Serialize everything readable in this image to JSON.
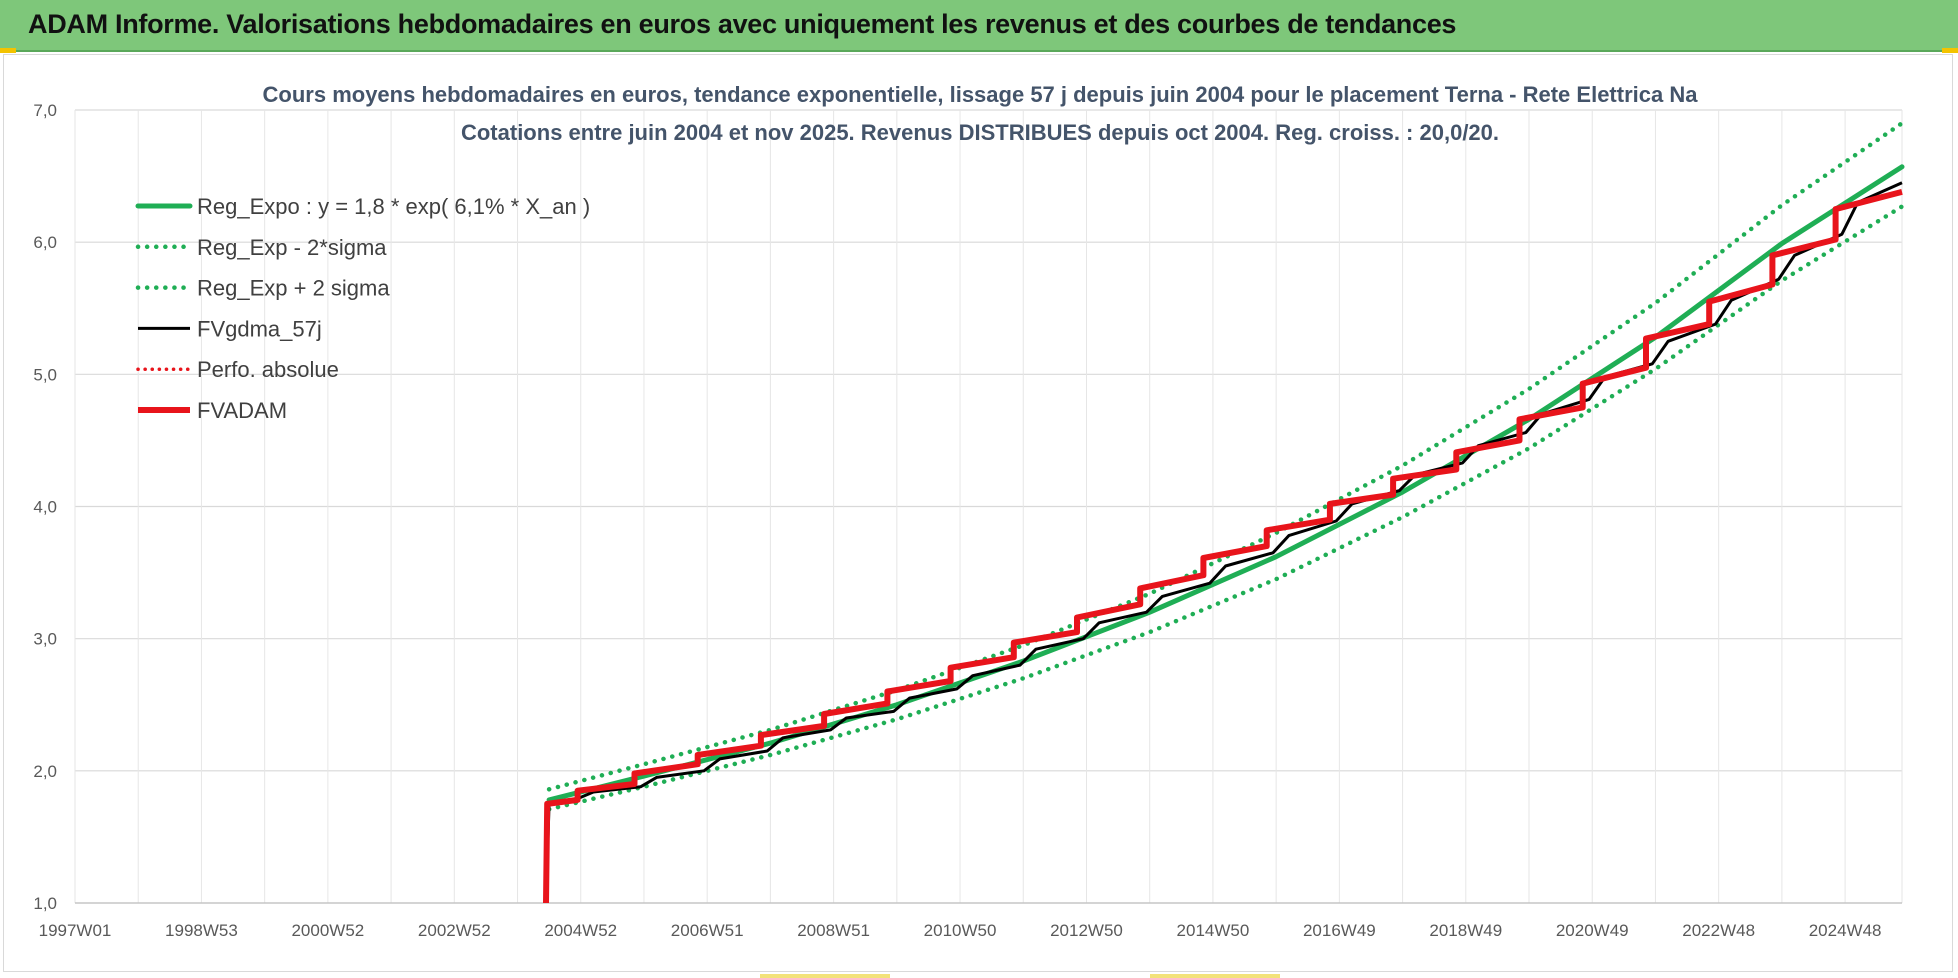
{
  "header": {
    "title": "ADAM Informe. Valorisations hebdomadaires en euros avec uniquement les revenus et des courbes de tendances"
  },
  "colors": {
    "banner": "#7ec77a",
    "regression": "#1fae55",
    "fvgdma": "#000000",
    "fvadam": "#e8141b",
    "perfo": "#e8141b",
    "grid": "#d9d9d9"
  },
  "chart_data": {
    "type": "line",
    "title": "Cours moyens hebdomadaires en euros, tendance exponentielle, lissage 57 j depuis juin 2004 pour le placement Terna - Rete Elettrica Na",
    "subtitle": "Cotations entre juin 2004 et nov 2025. Revenus DISTRIBUES depuis oct 2004. Reg. croiss. : 20,0/20.",
    "xlabel": "",
    "ylabel": "",
    "x_ticks": [
      "1997W01",
      "1998W53",
      "2000W52",
      "2002W52",
      "2004W52",
      "2006W51",
      "2008W51",
      "2010W50",
      "2012W50",
      "2014W50",
      "2016W49",
      "2018W49",
      "2020W49",
      "2022W48",
      "2024W48"
    ],
    "x_tick_years": [
      1997.0,
      1999.0,
      2001.0,
      2003.0,
      2005.0,
      2007.0,
      2009.0,
      2011.0,
      2013.0,
      2015.0,
      2017.0,
      2019.0,
      2021.0,
      2023.0,
      2025.0
    ],
    "xlim": [
      1997.0,
      2025.9
    ],
    "ylim": [
      1.0,
      7.0
    ],
    "y_ticks": [
      "1,0",
      "2,0",
      "3,0",
      "4,0",
      "5,0",
      "6,0",
      "7,0"
    ],
    "y_tick_values": [
      1,
      2,
      3,
      4,
      5,
      6,
      7
    ],
    "grid": true,
    "legend_position": "top-left",
    "series": [
      {
        "name": "Reg_Expo : y = 1,8 * exp( 6,1% *  X_an )",
        "style": "solid-green",
        "x": [
          2004.5,
          2006.0,
          2008.0,
          2010.0,
          2012.0,
          2014.0,
          2016.0,
          2018.0,
          2020.0,
          2022.0,
          2024.0,
          2025.9
        ],
        "y": [
          1.78,
          1.96,
          2.21,
          2.5,
          2.83,
          3.2,
          3.62,
          4.11,
          4.66,
          5.28,
          5.99,
          6.57
        ]
      },
      {
        "name": "Reg_Exp - 2*sigma",
        "style": "dotted-green",
        "x": [
          2004.5,
          2006.0,
          2008.0,
          2010.0,
          2012.0,
          2014.0,
          2016.0,
          2018.0,
          2020.0,
          2022.0,
          2024.0,
          2025.9
        ],
        "y": [
          1.71,
          1.88,
          2.12,
          2.39,
          2.7,
          3.05,
          3.45,
          3.92,
          4.44,
          5.04,
          5.71,
          6.27
        ]
      },
      {
        "name": "Reg_Exp + 2 sigma",
        "style": "dotted-green",
        "x": [
          2004.5,
          2006.0,
          2008.0,
          2010.0,
          2012.0,
          2014.0,
          2016.0,
          2018.0,
          2020.0,
          2022.0,
          2024.0,
          2025.9
        ],
        "y": [
          1.86,
          2.05,
          2.31,
          2.61,
          2.95,
          3.34,
          3.8,
          4.31,
          4.89,
          5.54,
          6.28,
          6.9
        ]
      },
      {
        "name": "FVgdma_57j",
        "style": "solid-black",
        "x": [
          2004.45,
          2004.5,
          2004.95,
          2005.2,
          2005.95,
          2006.2,
          2006.95,
          2007.2,
          2007.95,
          2008.2,
          2008.95,
          2009.2,
          2009.95,
          2010.2,
          2010.95,
          2011.2,
          2011.95,
          2012.2,
          2012.95,
          2013.2,
          2013.95,
          2014.2,
          2014.95,
          2015.2,
          2015.95,
          2016.2,
          2016.95,
          2017.2,
          2017.95,
          2018.2,
          2018.95,
          2019.2,
          2019.95,
          2020.2,
          2020.95,
          2021.2,
          2021.95,
          2022.2,
          2022.95,
          2023.2,
          2023.95,
          2024.2,
          2024.95,
          2025.2,
          2025.9
        ],
        "y": [
          1.0,
          1.76,
          1.79,
          1.84,
          1.88,
          1.95,
          2.0,
          2.09,
          2.15,
          2.25,
          2.31,
          2.4,
          2.45,
          2.55,
          2.62,
          2.72,
          2.8,
          2.92,
          3.0,
          3.12,
          3.2,
          3.32,
          3.42,
          3.55,
          3.65,
          3.78,
          3.89,
          4.02,
          4.12,
          4.24,
          4.33,
          4.46,
          4.56,
          4.7,
          4.81,
          4.98,
          5.08,
          5.25,
          5.38,
          5.56,
          5.72,
          5.9,
          6.06,
          6.3,
          6.45
        ]
      },
      {
        "name": "Perfo. absolue",
        "style": "dotted-red",
        "x": [],
        "y": []
      },
      {
        "name": "FVADAM",
        "style": "thick-red-step",
        "x": [
          2004.45,
          2004.47,
          2004.95,
          2004.95,
          2005.85,
          2005.85,
          2006.85,
          2006.85,
          2007.85,
          2007.85,
          2008.85,
          2008.85,
          2009.85,
          2009.85,
          2010.85,
          2010.85,
          2011.85,
          2011.85,
          2012.85,
          2012.85,
          2013.85,
          2013.85,
          2014.85,
          2014.85,
          2015.85,
          2015.85,
          2016.85,
          2016.85,
          2017.85,
          2017.85,
          2018.85,
          2018.85,
          2019.85,
          2019.85,
          2020.85,
          2020.85,
          2021.85,
          2021.85,
          2022.85,
          2022.85,
          2023.85,
          2023.85,
          2024.85,
          2024.85,
          2025.9
        ],
        "y": [
          1.0,
          1.75,
          1.78,
          1.85,
          1.9,
          1.98,
          2.05,
          2.12,
          2.19,
          2.27,
          2.34,
          2.43,
          2.51,
          2.6,
          2.68,
          2.78,
          2.86,
          2.97,
          3.05,
          3.16,
          3.26,
          3.38,
          3.48,
          3.61,
          3.7,
          3.82,
          3.9,
          4.02,
          4.09,
          4.21,
          4.28,
          4.41,
          4.5,
          4.66,
          4.75,
          4.93,
          5.05,
          5.27,
          5.38,
          5.55,
          5.68,
          5.9,
          6.02,
          6.25,
          6.38
        ]
      }
    ]
  }
}
